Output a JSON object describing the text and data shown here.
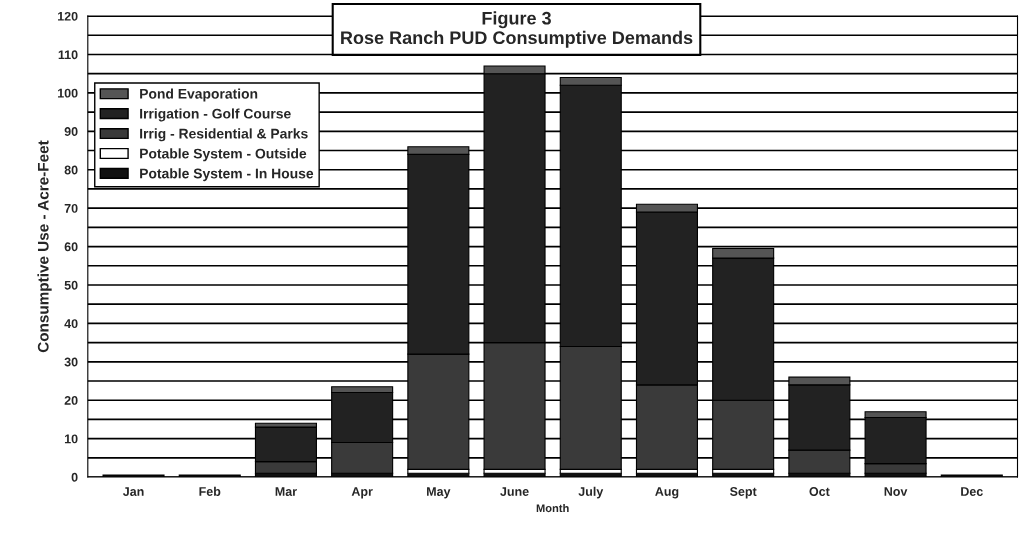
{
  "chart_data": {
    "type": "bar",
    "title": "Figure 3",
    "subtitle": "Rose Ranch PUD Consumptive Demands",
    "xlabel": "Month",
    "ylabel": "Consumptive Use - Acre-Feet",
    "categories": [
      "Jan",
      "Feb",
      "Mar",
      "Apr",
      "May",
      "June",
      "July",
      "Aug",
      "Sept",
      "Oct",
      "Nov",
      "Dec"
    ],
    "stacked": true,
    "series": [
      {
        "name": "Potable System - In House",
        "color": "#111111",
        "values": [
          0.5,
          0.5,
          1,
          1,
          1,
          1,
          1,
          1,
          1,
          1,
          1,
          0.5
        ]
      },
      {
        "name": "Potable System - Outside",
        "color": "#ffffff",
        "values": [
          0,
          0,
          0,
          0,
          1,
          1,
          1,
          1,
          1,
          0,
          0,
          0
        ]
      },
      {
        "name": "Irrig - Residential & Parks",
        "color": "#3a3a3a",
        "values": [
          0,
          0,
          3,
          8,
          30,
          33,
          32,
          22,
          18,
          6,
          2.5,
          0
        ]
      },
      {
        "name": "Irrigation - Golf Course",
        "color": "#222222",
        "values": [
          0,
          0,
          9,
          13,
          52,
          70,
          68,
          45,
          37,
          17,
          12,
          0
        ]
      },
      {
        "name": "Pond Evaporation",
        "color": "#555555",
        "values": [
          0,
          0,
          1,
          1.5,
          2,
          2,
          2,
          2,
          2.5,
          2,
          1.5,
          0
        ]
      }
    ],
    "ylim": [
      0,
      120
    ],
    "yticks": [
      0,
      {
        "value": 5,
        "label": null
      },
      10,
      {
        "value": 15,
        "label": null
      },
      20,
      {
        "value": 25,
        "label": null
      },
      30,
      {
        "value": 35,
        "label": null
      },
      40,
      {
        "value": 45,
        "label": null
      },
      50,
      {
        "value": 55,
        "label": null
      },
      60,
      {
        "value": 65,
        "label": null
      },
      70,
      {
        "value": 75,
        "label": null
      },
      80,
      {
        "value": 85,
        "label": null
      },
      90,
      {
        "value": 95,
        "label": null
      },
      100,
      {
        "value": 105,
        "label": null
      },
      110,
      {
        "value": 115,
        "label": null
      },
      120
    ],
    "grid": "y",
    "legend": "top left"
  }
}
